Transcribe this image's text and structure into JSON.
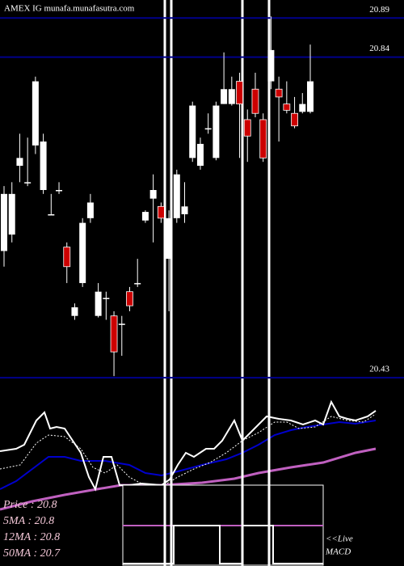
{
  "chart_data": {
    "type": "candlestick",
    "title": "AMEX  IG munafa.munafasutra.com",
    "ylim": [
      20.427,
      20.913
    ],
    "yticks": [
      20.89,
      20.84,
      20.43
    ],
    "categories": [
      null,
      null,
      null,
      null,
      null,
      null,
      null,
      null,
      null,
      null,
      null,
      null,
      null,
      null,
      null,
      null,
      null,
      null,
      null,
      null,
      null,
      null,
      null,
      null,
      null,
      null,
      null,
      null,
      null,
      null,
      null,
      null,
      null,
      null,
      null,
      null,
      null,
      null,
      null,
      null
    ],
    "open": [
      20.592,
      20.613,
      20.701,
      20.68,
      20.727,
      20.67,
      20.639,
      20.67,
      20.597,
      20.509,
      20.551,
      20.634,
      20.509,
      20.532,
      20.509,
      20.499,
      20.54,
      20.551,
      20.631,
      20.659,
      20.649,
      20.582,
      20.634,
      20.639,
      20.711,
      20.701,
      20.749,
      20.711,
      20.78,
      20.78,
      20.809,
      20.76,
      20.799,
      20.76,
      20.809,
      20.799,
      20.78,
      20.768,
      20.77,
      20.77
    ],
    "high": [
      20.675,
      20.68,
      20.742,
      20.737,
      20.815,
      20.742,
      20.665,
      20.68,
      20.603,
      20.525,
      20.634,
      20.665,
      20.551,
      20.54,
      20.515,
      20.509,
      20.546,
      20.582,
      20.644,
      20.69,
      20.654,
      20.644,
      20.696,
      20.68,
      20.783,
      20.737,
      20.768,
      20.783,
      20.846,
      20.815,
      20.82,
      20.773,
      20.82,
      20.768,
      20.892,
      20.815,
      20.809,
      20.789,
      20.794,
      20.856
    ],
    "low": [
      20.572,
      20.603,
      20.68,
      20.675,
      20.716,
      20.665,
      20.639,
      20.665,
      20.551,
      20.504,
      20.546,
      20.628,
      20.507,
      20.504,
      20.432,
      20.458,
      20.515,
      20.546,
      20.628,
      20.603,
      20.628,
      20.515,
      20.628,
      20.628,
      20.706,
      20.696,
      20.742,
      20.708,
      20.78,
      20.778,
      20.711,
      20.706,
      20.763,
      20.706,
      20.799,
      20.732,
      20.768,
      20.749,
      20.768,
      20.768
    ],
    "close": [
      20.665,
      20.665,
      20.711,
      20.68,
      20.809,
      20.732,
      20.639,
      20.67,
      20.572,
      20.52,
      20.628,
      20.654,
      20.54,
      20.532,
      20.463,
      20.499,
      20.522,
      20.551,
      20.642,
      20.67,
      20.634,
      20.634,
      20.69,
      20.649,
      20.778,
      20.729,
      20.749,
      20.778,
      20.799,
      20.799,
      20.78,
      20.739,
      20.768,
      20.711,
      20.849,
      20.789,
      20.772,
      20.752,
      20.78,
      20.809
    ],
    "up_color": "#ffffff",
    "down_color": "#cc0000",
    "line_color": "#00008b",
    "legend": [
      "Price : 20.8",
      "5MA : 20.8",
      "12MA : 20.8",
      "50MA : 20.7"
    ],
    "live_label": [
      "<<Live",
      "MACD"
    ]
  }
}
